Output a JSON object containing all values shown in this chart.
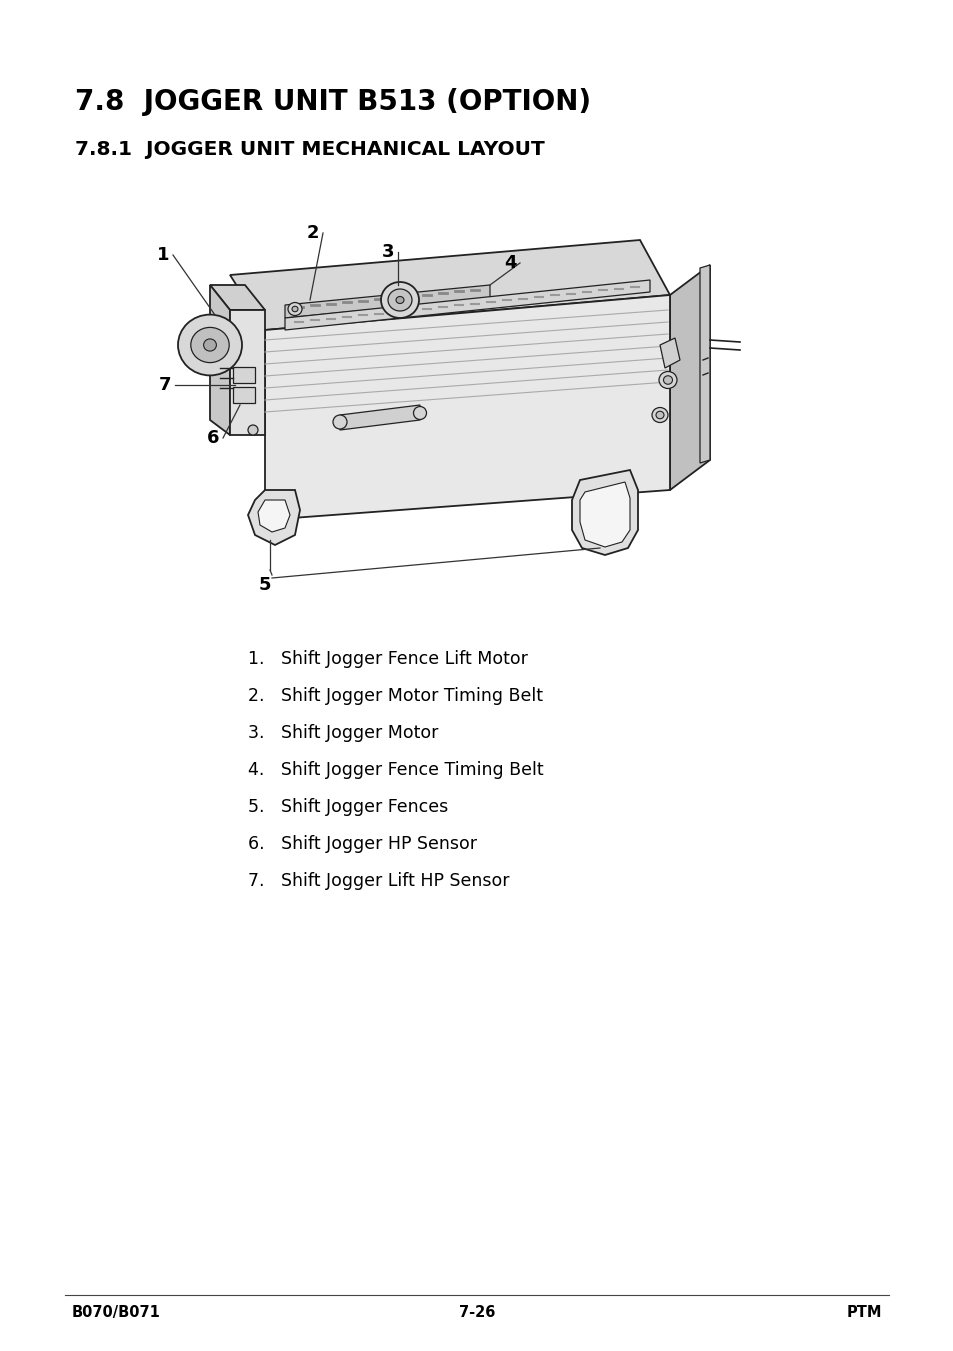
{
  "title1": "7.8  JOGGER UNIT B513 (OPTION)",
  "title2": "7.8.1  JOGGER UNIT MECHANICAL LAYOUT",
  "list_items": [
    "1.   Shift Jogger Fence Lift Motor",
    "2.   Shift Jogger Motor Timing Belt",
    "3.   Shift Jogger Motor",
    "4.   Shift Jogger Fence Timing Belt",
    "5.   Shift Jogger Fences",
    "6.   Shift Jogger HP Sensor",
    "7.   Shift Jogger Lift HP Sensor"
  ],
  "footer_left": "B070/B071",
  "footer_center": "7-26",
  "footer_right": "PTM",
  "bg_color": "#ffffff",
  "text_color": "#000000"
}
